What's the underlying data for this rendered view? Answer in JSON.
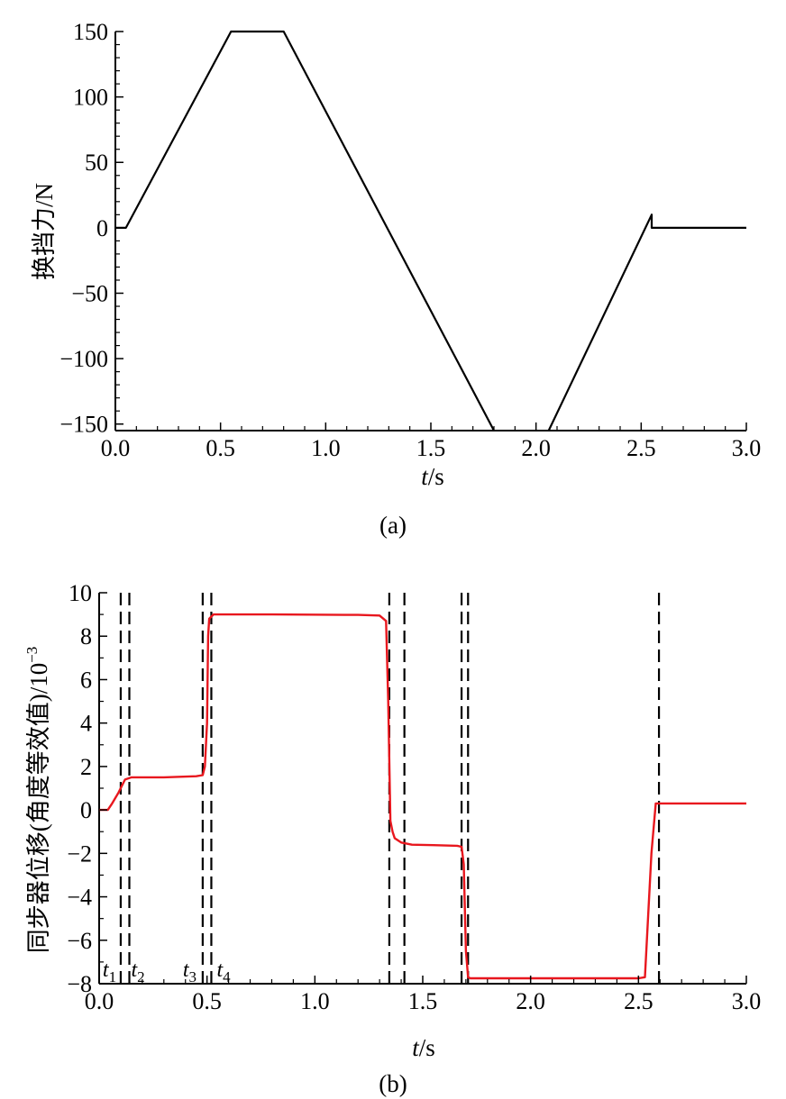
{
  "chart_data": [
    {
      "type": "line",
      "panel_label": "(a)",
      "xlabel_var": "t",
      "xlabel_unit": "/s",
      "ylabel": "换挡力/N",
      "xlim": [
        0,
        3.0
      ],
      "ylim": [
        -155,
        150
      ],
      "xticks": [
        0,
        0.5,
        1.0,
        1.5,
        2.0,
        2.5,
        3.0
      ],
      "xtick_labels": [
        "0.0",
        "0.5",
        "1.0",
        "1.5",
        "2.0",
        "2.5",
        "3.0"
      ],
      "yticks": [
        150,
        100,
        50,
        0,
        -50,
        -100,
        -150
      ],
      "ytick_labels": [
        "150",
        "100",
        "50",
        "0",
        "−50",
        "−100",
        "−150"
      ],
      "series": [
        {
          "color": "#000000",
          "segments": [
            {
              "x": [
                0.0,
                0.05,
                0.55,
                0.8,
                1.8
              ],
              "y": [
                0,
                0,
                150,
                150,
                -155
              ]
            },
            {
              "x": [
                2.06,
                2.55,
                2.55,
                3.0
              ],
              "y": [
                -155,
                10,
                0,
                0
              ]
            }
          ]
        }
      ]
    },
    {
      "type": "line",
      "panel_label": "(b)",
      "xlabel_var": "t",
      "xlabel_unit": "/s",
      "ylabel": "同步器位移(角度等效值)/10",
      "ylabel_exp": "−3",
      "xlim": [
        0,
        3.0
      ],
      "ylim": [
        -8,
        10
      ],
      "xticks": [
        0,
        0.5,
        1.0,
        1.5,
        2.0,
        2.5,
        3.0
      ],
      "xtick_labels": [
        "0.0",
        "0.5",
        "1.0",
        "1.5",
        "2.0",
        "2.5",
        "3.0"
      ],
      "yticks": [
        10,
        8,
        6,
        4,
        2,
        0,
        -2,
        -4,
        -6,
        -8
      ],
      "ytick_labels": [
        "10",
        "8",
        "6",
        "4",
        "2",
        "0",
        "−2",
        "−4",
        "−6",
        "−8"
      ],
      "series": [
        {
          "color": "#e8171e",
          "x": [
            0.0,
            0.04,
            0.06,
            0.09,
            0.12,
            0.15,
            0.3,
            0.45,
            0.48,
            0.49,
            0.5,
            0.505,
            0.51,
            0.53,
            0.8,
            1.2,
            1.3,
            1.33,
            1.34,
            1.35,
            1.36,
            1.37,
            1.4,
            1.45,
            1.55,
            1.66,
            1.68,
            1.69,
            1.7,
            1.71,
            1.72,
            1.8,
            2.2,
            2.5,
            2.53,
            2.56,
            2.58,
            2.6,
            2.7,
            3.0
          ],
          "y": [
            0.0,
            0.0,
            0.3,
            0.8,
            1.4,
            1.5,
            1.5,
            1.55,
            1.6,
            2.0,
            4.0,
            8.0,
            8.8,
            9.0,
            9.0,
            8.98,
            8.95,
            8.7,
            5.0,
            -0.5,
            -1.0,
            -1.3,
            -1.5,
            -1.6,
            -1.62,
            -1.65,
            -1.7,
            -2.5,
            -6.5,
            -7.7,
            -7.75,
            -7.75,
            -7.75,
            -7.75,
            -7.7,
            -2.0,
            0.3,
            0.3,
            0.3,
            0.3
          ]
        }
      ],
      "markers": [
        {
          "x": 0.1,
          "label": "t",
          "sub": "1"
        },
        {
          "x": 0.14,
          "label": "t",
          "sub": "2"
        },
        {
          "x": 0.48,
          "label": "t",
          "sub": "3"
        },
        {
          "x": 0.52,
          "label": "t",
          "sub": "4"
        },
        {
          "x": 1.345
        },
        {
          "x": 1.415
        },
        {
          "x": 1.68
        },
        {
          "x": 1.71
        },
        {
          "x": 2.595
        }
      ]
    }
  ]
}
